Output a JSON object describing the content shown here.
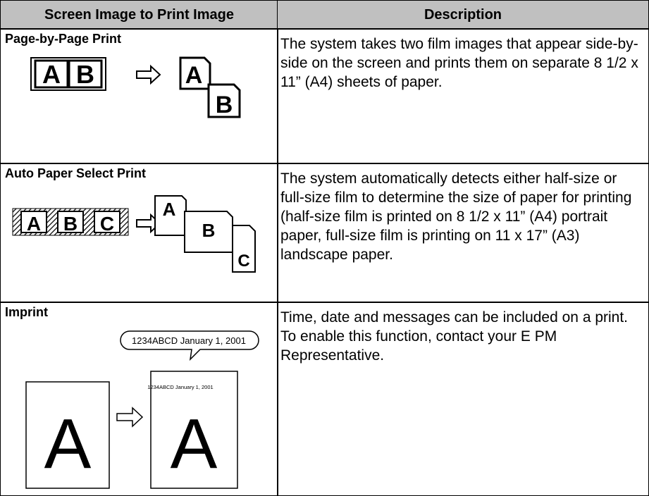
{
  "table": {
    "headers": [
      "Screen Image to Print Image",
      "Description"
    ],
    "rows": [
      {
        "title": "Page-by-Page Print",
        "description": "The system takes two film images that appear side-by-side on the screen and prints them on separate 8 1/2 x 11” (A4) sheets of paper.",
        "illustration": {
          "screen": [
            "A",
            "B"
          ],
          "print": [
            "A",
            "B"
          ]
        }
      },
      {
        "title": "Auto Paper Select Print",
        "description": "The system automatically detects either half-size or full-size film to determine the size of paper for printing (half-size film is printed on 8 1/2 x 11” (A4) portrait paper, full-size film is printing on 11 x 17” (A3) landscape paper.",
        "illustration": {
          "screen": [
            "A",
            "B",
            "C"
          ],
          "print": [
            "A",
            "B",
            "C"
          ]
        }
      },
      {
        "title": "Imprint",
        "description": "Time, date and messages can be included on a print. To enable this function, contact your E PM Representative.",
        "illustration": {
          "callout": "1234ABCD January 1, 2001",
          "imprint": "1234ABCD January 1, 2001",
          "screen": "A",
          "print": "A"
        }
      }
    ]
  }
}
